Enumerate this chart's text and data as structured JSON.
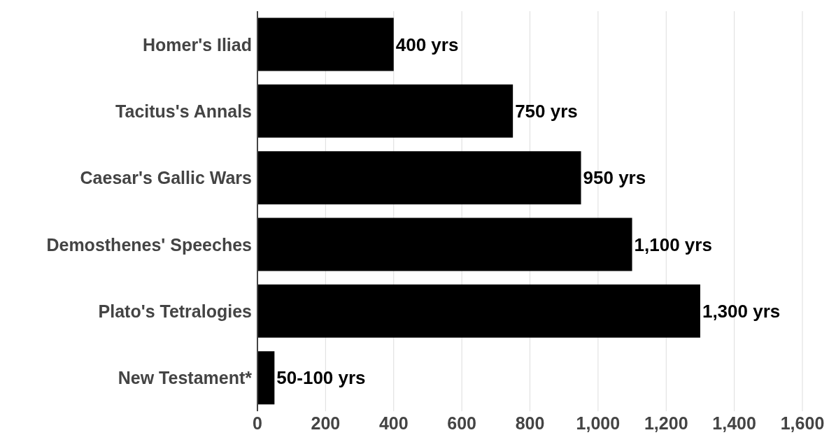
{
  "chart_data": {
    "type": "bar",
    "orientation": "horizontal",
    "categories": [
      "Homer's Iliad",
      "Tacitus's Annals",
      "Caesar's Gallic Wars",
      "Demosthenes' Speeches",
      "Plato's Tetralogies",
      "New Testament*"
    ],
    "values": [
      400,
      750,
      950,
      1100,
      1300,
      50
    ],
    "color": "#000000",
    "value_labels": [
      "400 yrs",
      "750 yrs",
      "950 yrs",
      "1,100 yrs",
      "1,300 yrs",
      "50-100 yrs"
    ],
    "xlim": [
      0,
      1600
    ],
    "xticks": [
      0,
      {
        "value": 200,
        "label": "200"
      },
      {
        "value": 400,
        "label": "400"
      },
      {
        "value": 600,
        "label": "600"
      },
      {
        "value": 800,
        "label": "800"
      },
      {
        "value": 1000,
        "label": "1,000"
      },
      {
        "value": 1200,
        "label": "1,200"
      },
      {
        "value": 1400,
        "label": "1,400"
      },
      {
        "value": 1600,
        "label": "1,600"
      }
    ],
    "grid": "x"
  }
}
